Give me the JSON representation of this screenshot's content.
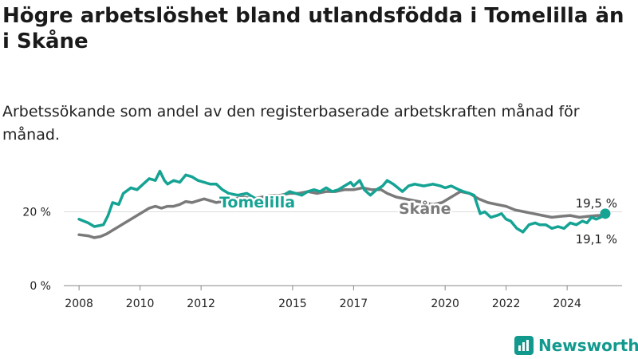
{
  "header": {
    "title": "Högre arbetslöshet bland utlandsfödda i Tomelilla än i Skåne",
    "subtitle": "Arbetssökande som andel av den registerbaserade arbetskraften månad för månad."
  },
  "brand": {
    "name": "Newsworthy",
    "icon": "newsworthy-logo-icon",
    "color": "#11998e"
  },
  "chart_data": {
    "type": "line",
    "x_ticks": [
      "2008",
      "2010",
      "2012",
      "2015",
      "2017",
      "2020",
      "2022",
      "2024"
    ],
    "y_ticks": [
      "0 %",
      "20 %"
    ],
    "ylim": [
      0,
      32
    ],
    "xlim": [
      2007.5,
      2025.8
    ],
    "grid": "horizontal",
    "series": [
      {
        "name": "Tomelilla",
        "color": "#15a394",
        "end_label": "19,5 %",
        "points": [
          [
            2008.0,
            18.0
          ],
          [
            2008.3,
            17.0
          ],
          [
            2008.5,
            16.0
          ],
          [
            2008.8,
            16.5
          ],
          [
            2008.95,
            19.0
          ],
          [
            2009.1,
            22.5
          ],
          [
            2009.3,
            22.0
          ],
          [
            2009.45,
            25.0
          ],
          [
            2009.7,
            26.5
          ],
          [
            2009.9,
            26.0
          ],
          [
            2010.1,
            27.5
          ],
          [
            2010.3,
            29.0
          ],
          [
            2010.5,
            28.5
          ],
          [
            2010.65,
            31.0
          ],
          [
            2010.8,
            28.5
          ],
          [
            2010.9,
            27.5
          ],
          [
            2011.1,
            28.5
          ],
          [
            2011.3,
            28.0
          ],
          [
            2011.5,
            30.0
          ],
          [
            2011.7,
            29.5
          ],
          [
            2011.9,
            28.5
          ],
          [
            2012.1,
            28.0
          ],
          [
            2012.3,
            27.5
          ],
          [
            2012.5,
            27.5
          ],
          [
            2012.7,
            26.0
          ],
          [
            2012.9,
            25.0
          ],
          [
            2013.2,
            24.5
          ],
          [
            2013.5,
            25.0
          ],
          [
            2013.8,
            23.5
          ],
          [
            2014.1,
            23.0
          ],
          [
            2014.3,
            22.5
          ],
          [
            2014.6,
            24.0
          ],
          [
            2014.9,
            25.5
          ],
          [
            2015.1,
            25.0
          ],
          [
            2015.3,
            24.5
          ],
          [
            2015.5,
            25.5
          ],
          [
            2015.7,
            26.0
          ],
          [
            2015.9,
            25.5
          ],
          [
            2016.1,
            26.5
          ],
          [
            2016.3,
            25.5
          ],
          [
            2016.5,
            26.0
          ],
          [
            2016.7,
            27.0
          ],
          [
            2016.9,
            28.0
          ],
          [
            2017.0,
            27.0
          ],
          [
            2017.2,
            28.5
          ],
          [
            2017.35,
            26.0
          ],
          [
            2017.55,
            24.5
          ],
          [
            2017.75,
            26.0
          ],
          [
            2017.95,
            27.0
          ],
          [
            2018.1,
            28.5
          ],
          [
            2018.3,
            27.5
          ],
          [
            2018.45,
            26.5
          ],
          [
            2018.6,
            25.5
          ],
          [
            2018.8,
            27.0
          ],
          [
            2019.0,
            27.5
          ],
          [
            2019.3,
            27.0
          ],
          [
            2019.6,
            27.5
          ],
          [
            2019.85,
            27.0
          ],
          [
            2020.0,
            26.5
          ],
          [
            2020.2,
            27.0
          ],
          [
            2020.45,
            26.0
          ],
          [
            2020.6,
            25.5
          ],
          [
            2020.8,
            25.0
          ],
          [
            2020.95,
            24.5
          ],
          [
            2021.05,
            22.0
          ],
          [
            2021.15,
            19.5
          ],
          [
            2021.3,
            20.0
          ],
          [
            2021.5,
            18.5
          ],
          [
            2021.7,
            19.0
          ],
          [
            2021.85,
            19.5
          ],
          [
            2022.0,
            18.0
          ],
          [
            2022.15,
            17.5
          ],
          [
            2022.35,
            15.5
          ],
          [
            2022.55,
            14.5
          ],
          [
            2022.75,
            16.5
          ],
          [
            2022.95,
            17.0
          ],
          [
            2023.1,
            16.5
          ],
          [
            2023.3,
            16.5
          ],
          [
            2023.5,
            15.5
          ],
          [
            2023.7,
            16.0
          ],
          [
            2023.9,
            15.5
          ],
          [
            2024.1,
            17.0
          ],
          [
            2024.3,
            16.5
          ],
          [
            2024.5,
            17.5
          ],
          [
            2024.65,
            17.0
          ],
          [
            2024.8,
            18.5
          ],
          [
            2024.95,
            18.0
          ],
          [
            2025.1,
            18.5
          ],
          [
            2025.25,
            19.5
          ]
        ]
      },
      {
        "name": "Skåne",
        "color": "#7a7a7a",
        "end_label": "19,1 %",
        "points": [
          [
            2008.0,
            13.8
          ],
          [
            2008.3,
            13.5
          ],
          [
            2008.5,
            13.0
          ],
          [
            2008.7,
            13.3
          ],
          [
            2008.9,
            14.0
          ],
          [
            2009.1,
            15.0
          ],
          [
            2009.3,
            16.0
          ],
          [
            2009.5,
            17.0
          ],
          [
            2009.7,
            18.0
          ],
          [
            2009.9,
            19.0
          ],
          [
            2010.1,
            20.0
          ],
          [
            2010.3,
            21.0
          ],
          [
            2010.5,
            21.5
          ],
          [
            2010.7,
            21.0
          ],
          [
            2010.9,
            21.5
          ],
          [
            2011.1,
            21.5
          ],
          [
            2011.3,
            22.0
          ],
          [
            2011.5,
            22.8
          ],
          [
            2011.7,
            22.5
          ],
          [
            2011.9,
            23.0
          ],
          [
            2012.1,
            23.5
          ],
          [
            2012.3,
            23.0
          ],
          [
            2012.5,
            22.5
          ],
          [
            2012.8,
            23.0
          ],
          [
            2013.1,
            23.5
          ],
          [
            2013.4,
            24.0
          ],
          [
            2013.7,
            23.5
          ],
          [
            2014.0,
            24.0
          ],
          [
            2014.3,
            24.5
          ],
          [
            2014.6,
            24.5
          ],
          [
            2014.9,
            25.0
          ],
          [
            2015.2,
            25.0
          ],
          [
            2015.5,
            25.5
          ],
          [
            2015.8,
            25.0
          ],
          [
            2016.1,
            25.5
          ],
          [
            2016.4,
            25.5
          ],
          [
            2016.7,
            26.0
          ],
          [
            2017.0,
            26.0
          ],
          [
            2017.3,
            26.5
          ],
          [
            2017.6,
            26.0
          ],
          [
            2017.9,
            26.0
          ],
          [
            2018.1,
            25.0
          ],
          [
            2018.4,
            24.0
          ],
          [
            2018.7,
            23.5
          ],
          [
            2019.0,
            23.0
          ],
          [
            2019.3,
            22.5
          ],
          [
            2019.6,
            22.0
          ],
          [
            2019.9,
            22.5
          ],
          [
            2020.2,
            24.0
          ],
          [
            2020.5,
            25.5
          ],
          [
            2020.8,
            25.0
          ],
          [
            2021.1,
            23.5
          ],
          [
            2021.4,
            22.5
          ],
          [
            2021.7,
            22.0
          ],
          [
            2022.0,
            21.5
          ],
          [
            2022.3,
            20.5
          ],
          [
            2022.6,
            20.0
          ],
          [
            2022.9,
            19.5
          ],
          [
            2023.2,
            19.0
          ],
          [
            2023.5,
            18.5
          ],
          [
            2023.8,
            18.8
          ],
          [
            2024.1,
            19.0
          ],
          [
            2024.4,
            18.5
          ],
          [
            2024.7,
            18.8
          ],
          [
            2025.0,
            19.0
          ],
          [
            2025.25,
            19.1
          ]
        ]
      }
    ]
  }
}
